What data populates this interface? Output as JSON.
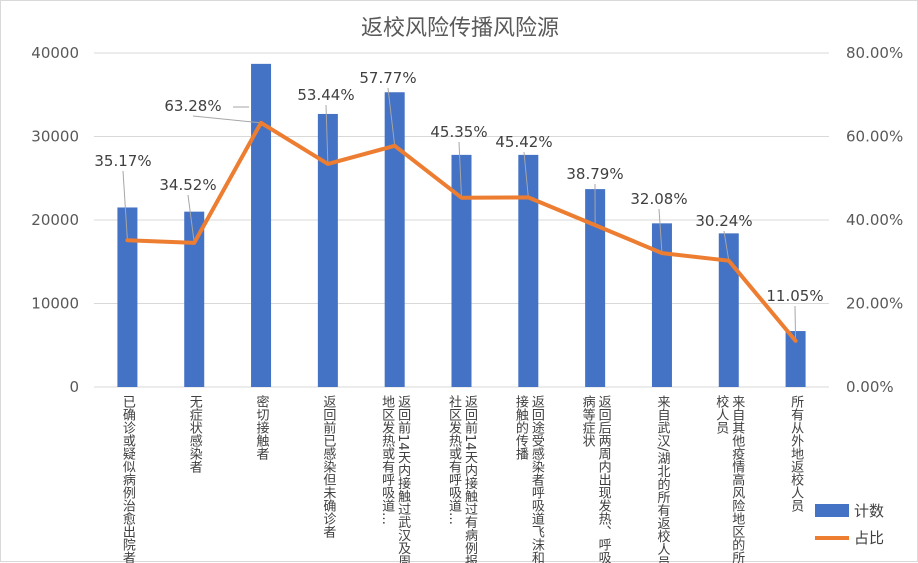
{
  "chart_data": {
    "type": "bar",
    "title": "返校风险传播风险源",
    "categories": [
      "已确诊或疑似病例治愈出院者",
      "无症状感染者",
      "密切接触者",
      "返回前已感染但未确诊者",
      "返回前14天内接触过武汉及周边地区发热或有呼吸道…",
      "返回前14天内接触过有病例报告社区发热或有呼吸道…",
      "返回途受感染者呼吸道飞沫和密切接触的传播",
      "返回后两周内出现发热、呼吸道疾病等症状",
      "来自武汉/湖北的所有返校人员",
      "来自其他疫情高风险地区的所有返校人员",
      "所有从外地返校人员"
    ],
    "series": [
      {
        "name": "计数",
        "type": "bar",
        "axis": "left",
        "color": "#4472c4",
        "values": [
          21500,
          21000,
          38700,
          32700,
          35300,
          27800,
          27800,
          23700,
          19600,
          18400,
          6700
        ]
      },
      {
        "name": "占比",
        "type": "line",
        "axis": "right",
        "color": "#ed7d31",
        "values": [
          35.17,
          34.52,
          63.28,
          53.44,
          57.77,
          45.35,
          45.42,
          38.79,
          32.08,
          30.24,
          11.05
        ],
        "labels": [
          "35.17%",
          "34.52%",
          "63.28%",
          "53.44%",
          "57.77%",
          "45.35%",
          "45.42%",
          "38.79%",
          "32.08%",
          "30.24%",
          "11.05%"
        ]
      }
    ],
    "y_left": {
      "min": 0,
      "max": 40000,
      "ticks": [
        "0",
        "10000",
        "20000",
        "30000",
        "40000"
      ]
    },
    "y_right": {
      "min": 0,
      "max": 80,
      "ticks": [
        "0.00%",
        "20.00%",
        "40.00%",
        "60.00%",
        "80.00%"
      ]
    },
    "grid": true,
    "legend": {
      "position": "bottom-right",
      "entries": [
        "计数",
        "占比"
      ]
    }
  }
}
